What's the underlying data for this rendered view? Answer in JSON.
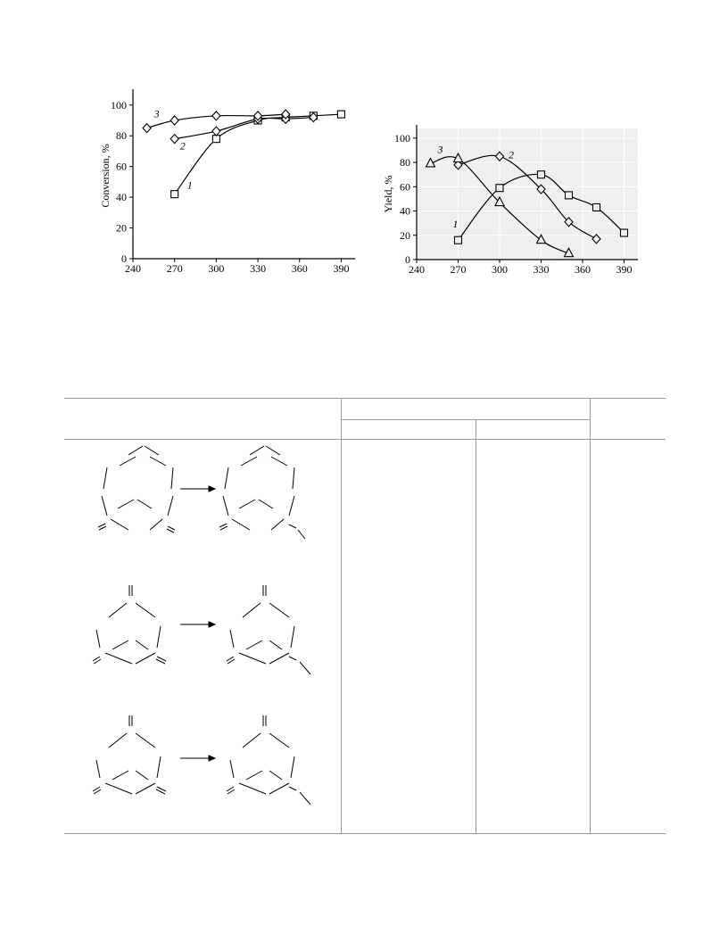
{
  "chart_data": [
    {
      "type": "line",
      "ylabel": "Conversion, %",
      "xlabel": "",
      "xlim": [
        240,
        400
      ],
      "ylim": [
        0,
        108
      ],
      "xticks": [
        240,
        270,
        300,
        330,
        360,
        390
      ],
      "yticks": [
        0,
        20,
        40,
        60,
        80,
        100
      ],
      "grid": false,
      "series": [
        {
          "name": "1",
          "marker": "square",
          "x": [
            270,
            300,
            330,
            350,
            370,
            390
          ],
          "y": [
            42,
            78,
            90,
            92,
            93,
            94
          ]
        },
        {
          "name": "2",
          "marker": "diamond",
          "x": [
            270,
            300,
            330,
            350,
            370
          ],
          "y": [
            78,
            83,
            91,
            91,
            92
          ]
        },
        {
          "name": "3",
          "marker": "diamond",
          "x": [
            250,
            270,
            300,
            330,
            350
          ],
          "y": [
            85,
            90,
            93,
            93,
            94
          ]
        }
      ]
    },
    {
      "type": "line",
      "ylabel": "Yield, %",
      "xlabel": "",
      "xlim": [
        240,
        400
      ],
      "ylim": [
        0,
        108
      ],
      "xticks": [
        240,
        270,
        300,
        330,
        360,
        390
      ],
      "yticks": [
        0,
        20,
        40,
        60,
        80,
        100
      ],
      "grid": true,
      "series": [
        {
          "name": "1",
          "marker": "square",
          "x": [
            270,
            300,
            330,
            350,
            370,
            390
          ],
          "y": [
            16,
            59,
            70,
            53,
            43,
            22
          ]
        },
        {
          "name": "2",
          "marker": "diamond",
          "x": [
            270,
            300,
            330,
            350,
            370
          ],
          "y": [
            78,
            85,
            58,
            31,
            17
          ]
        },
        {
          "name": "3",
          "marker": "triangle",
          "x": [
            250,
            270,
            300,
            330,
            350
          ],
          "y": [
            79,
            83,
            47,
            16,
            5
          ]
        }
      ]
    }
  ],
  "colors": {
    "ink": "#000000",
    "plot_bg_right": "#efefef",
    "rule": "#9a9a9a"
  }
}
